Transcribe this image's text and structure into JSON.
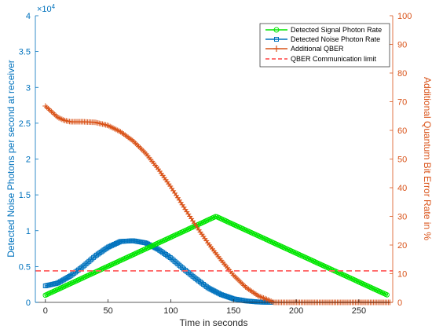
{
  "chart_data": {
    "type": "line",
    "xlabel": "Time in seconds",
    "ylabel_left": "Detected Noise Photons per second at receiver",
    "ylabel_right": "Additional Quantum Bit Error Rate in %",
    "left_exponent": "×10",
    "left_exponent_power": "4",
    "xlim": [
      -8,
      277
    ],
    "ylim_left": [
      0,
      4
    ],
    "ylim_right": [
      0,
      100
    ],
    "x_ticks": [
      0,
      50,
      100,
      150,
      200,
      250
    ],
    "x_tick_labels": [
      "0",
      "50",
      "100",
      "150",
      "200",
      "250"
    ],
    "y_left_ticks": [
      0,
      0.5,
      1,
      1.5,
      2,
      2.5,
      3,
      3.5,
      4
    ],
    "y_left_tick_labels": [
      "0",
      "0.5",
      "1",
      "1.5",
      "2",
      "2.5",
      "3",
      "3.5",
      "4"
    ],
    "y_right_ticks": [
      0,
      10,
      20,
      30,
      40,
      50,
      60,
      70,
      80,
      90,
      100
    ],
    "y_right_tick_labels": [
      "0",
      "10",
      "20",
      "30",
      "40",
      "50",
      "60",
      "70",
      "80",
      "90",
      "100"
    ],
    "grid": false,
    "legend_position": "top-right",
    "series": [
      {
        "name": "Detected Signal Photon Rate",
        "axis": "left",
        "color": "#00e600",
        "marker": "circle",
        "x": [
          0,
          136,
          273
        ],
        "y": [
          0.1,
          1.2,
          0.1
        ]
      },
      {
        "name": "Detected Noise Photon Rate",
        "axis": "left",
        "color": "#0072bd",
        "marker": "square",
        "x": [
          0,
          10,
          20,
          30,
          40,
          50,
          60,
          70,
          80,
          90,
          100,
          110,
          120,
          130,
          140,
          150,
          160,
          170,
          180
        ],
        "y": [
          0.23,
          0.27,
          0.37,
          0.5,
          0.65,
          0.77,
          0.85,
          0.86,
          0.83,
          0.74,
          0.62,
          0.47,
          0.33,
          0.2,
          0.11,
          0.05,
          0.02,
          0.005,
          0
        ]
      },
      {
        "name": "Additional QBER",
        "axis": "right",
        "color": "#d95319",
        "marker": "plus",
        "x": [
          0,
          5,
          10,
          15,
          20,
          30,
          40,
          50,
          60,
          70,
          80,
          90,
          100,
          110,
          120,
          130,
          140,
          150,
          160,
          170,
          178,
          182,
          200,
          220,
          240,
          260,
          275
        ],
        "y": [
          68.5,
          66.5,
          64.5,
          63.5,
          63,
          63,
          62.8,
          61.7,
          59.5,
          56.3,
          52,
          46.5,
          40.3,
          33.5,
          26.8,
          20.5,
          14.8,
          9.5,
          5.2,
          2.2,
          0.8,
          0,
          0,
          0,
          0,
          0,
          0
        ]
      },
      {
        "name": "QBER Communication limit",
        "axis": "right",
        "color": "#ff5f5f",
        "style": "dashed",
        "x": [
          -8,
          277
        ],
        "y": [
          11,
          11
        ]
      }
    ]
  }
}
